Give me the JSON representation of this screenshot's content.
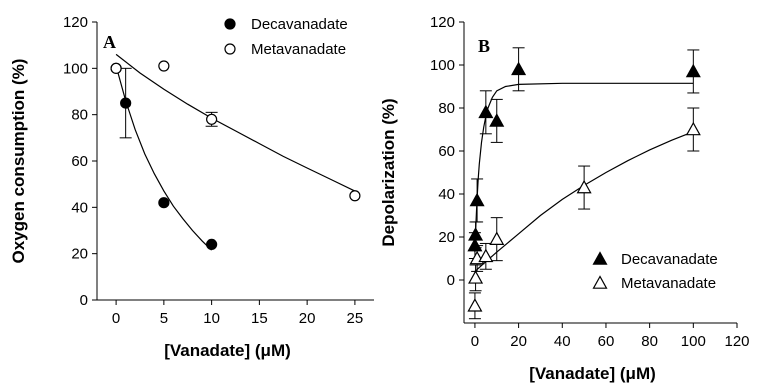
{
  "chart_data": [
    {
      "type": "scatter",
      "panel_label": "A",
      "xlabel": "[Vanadate] (μM)",
      "ylabel": "Oxygen consumption (%)",
      "xlim": [
        -2,
        27
      ],
      "ylim": [
        0,
        120
      ],
      "xticks": [
        0,
        5,
        10,
        15,
        20,
        25
      ],
      "yticks": [
        0,
        20,
        40,
        60,
        80,
        100,
        120
      ],
      "legend_position": "top-right",
      "series": [
        {
          "name": "Decavanadate",
          "marker": "filled-circle",
          "points": [
            {
              "x": 0,
              "y": 100
            },
            {
              "x": 1,
              "y": 85,
              "err": 15
            },
            {
              "x": 5,
              "y": 42
            },
            {
              "x": 10,
              "y": 24
            }
          ],
          "fit": [
            [
              0,
              101
            ],
            [
              1,
              86
            ],
            [
              2,
              73.5
            ],
            [
              3,
              63
            ],
            [
              4,
              54.5
            ],
            [
              5,
              47
            ],
            [
              6,
              40.5
            ],
            [
              7,
              35
            ],
            [
              8,
              30
            ],
            [
              9,
              25.5
            ],
            [
              10,
              21.5
            ]
          ]
        },
        {
          "name": "Metavanadate",
          "marker": "open-circle",
          "points": [
            {
              "x": 0,
              "y": 100
            },
            {
              "x": 5,
              "y": 101
            },
            {
              "x": 10,
              "y": 78,
              "err": 3
            },
            {
              "x": 25,
              "y": 45
            }
          ],
          "fit": [
            [
              0,
              106
            ],
            [
              2.5,
              98
            ],
            [
              5,
              91
            ],
            [
              7.5,
              84.5
            ],
            [
              10,
              78.5
            ],
            [
              12.5,
              73
            ],
            [
              15,
              67.5
            ],
            [
              17.5,
              62
            ],
            [
              20,
              57
            ],
            [
              22.5,
              52
            ],
            [
              25,
              47
            ]
          ]
        }
      ]
    },
    {
      "type": "scatter",
      "panel_label": "B",
      "xlabel": "[Vanadate] (μM)",
      "ylabel": "Depolarization (%)",
      "xlim": [
        -5,
        120
      ],
      "ylim": [
        -20,
        120
      ],
      "xticks": [
        0,
        20,
        40,
        60,
        80,
        100,
        120
      ],
      "yticks": [
        0,
        20,
        40,
        60,
        80,
        100,
        120
      ],
      "legend_position": "bottom-right",
      "series": [
        {
          "name": "Decavanadate",
          "marker": "filled-triangle",
          "points": [
            {
              "x": 0,
              "y": 16,
              "err": 6
            },
            {
              "x": 0.3,
              "y": 21,
              "err": 6
            },
            {
              "x": 1,
              "y": 37,
              "err": 10
            },
            {
              "x": 5,
              "y": 78,
              "err": 10
            },
            {
              "x": 10,
              "y": 74,
              "err": 10
            },
            {
              "x": 20,
              "y": 98,
              "err": 10
            },
            {
              "x": 100,
              "y": 97,
              "err": 10
            }
          ],
          "fit": [
            [
              0,
              13
            ],
            [
              0.5,
              27
            ],
            [
              1,
              38
            ],
            [
              1.5,
              47
            ],
            [
              2,
              54
            ],
            [
              3,
              64
            ],
            [
              4,
              71
            ],
            [
              5,
              76
            ],
            [
              6,
              80
            ],
            [
              8,
              85
            ],
            [
              10,
              88
            ],
            [
              14,
              90
            ],
            [
              20,
              91
            ],
            [
              40,
              91.5
            ],
            [
              100,
              91.5
            ]
          ]
        },
        {
          "name": "Metavanadate",
          "marker": "open-triangle",
          "points": [
            {
              "x": 0,
              "y": -12,
              "err": 6
            },
            {
              "x": 0.3,
              "y": 1,
              "err": 6
            },
            {
              "x": 1,
              "y": 10,
              "err": 6
            },
            {
              "x": 5,
              "y": 11,
              "err": 6
            },
            {
              "x": 10,
              "y": 19,
              "err": 10
            },
            {
              "x": 50,
              "y": 43,
              "err": 10
            },
            {
              "x": 100,
              "y": 70,
              "err": 10
            }
          ],
          "fit": [
            [
              0,
              4
            ],
            [
              5,
              8.5
            ],
            [
              10,
              13
            ],
            [
              20,
              21.5
            ],
            [
              30,
              30
            ],
            [
              40,
              37.5
            ],
            [
              50,
              44
            ],
            [
              60,
              50
            ],
            [
              70,
              55.5
            ],
            [
              80,
              60.5
            ],
            [
              90,
              65
            ],
            [
              100,
              69
            ]
          ]
        }
      ]
    }
  ]
}
